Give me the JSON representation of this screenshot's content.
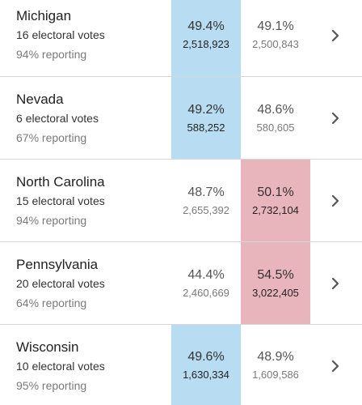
{
  "colors": {
    "dem_highlight": "#b8dcf1",
    "rep_highlight": "#e9b5bc",
    "divider": "#d6d6d6",
    "chevron": "#555555"
  },
  "states": [
    {
      "name": "Michigan",
      "electoral_votes": "16 electoral votes",
      "reporting": "94% reporting",
      "candidate1": {
        "pct": "49.4%",
        "votes": "2,518,923",
        "leading": true,
        "party": "dem"
      },
      "candidate2": {
        "pct": "49.1%",
        "votes": "2,500,843",
        "leading": false,
        "party": "rep"
      },
      "chevron_icon": "chevron-right-icon"
    },
    {
      "name": "Nevada",
      "electoral_votes": "6 electoral votes",
      "reporting": "67% reporting",
      "candidate1": {
        "pct": "49.2%",
        "votes": "588,252",
        "leading": true,
        "party": "dem"
      },
      "candidate2": {
        "pct": "48.6%",
        "votes": "580,605",
        "leading": false,
        "party": "rep"
      },
      "chevron_icon": "chevron-right-icon"
    },
    {
      "name": "North Carolina",
      "electoral_votes": "15 electoral votes",
      "reporting": "94% reporting",
      "candidate1": {
        "pct": "48.7%",
        "votes": "2,655,392",
        "leading": false,
        "party": "dem"
      },
      "candidate2": {
        "pct": "50.1%",
        "votes": "2,732,104",
        "leading": true,
        "party": "rep"
      },
      "chevron_icon": "chevron-right-icon"
    },
    {
      "name": "Pennsylvania",
      "electoral_votes": "20 electoral votes",
      "reporting": "64% reporting",
      "candidate1": {
        "pct": "44.4%",
        "votes": "2,460,669",
        "leading": false,
        "party": "dem"
      },
      "candidate2": {
        "pct": "54.5%",
        "votes": "3,022,405",
        "leading": true,
        "party": "rep"
      },
      "chevron_icon": "chevron-right-icon"
    },
    {
      "name": "Wisconsin",
      "electoral_votes": "10 electoral votes",
      "reporting": "95% reporting",
      "candidate1": {
        "pct": "49.6%",
        "votes": "1,630,334",
        "leading": true,
        "party": "dem"
      },
      "candidate2": {
        "pct": "48.9%",
        "votes": "1,609,586",
        "leading": false,
        "party": "rep"
      },
      "chevron_icon": "chevron-right-icon"
    }
  ]
}
